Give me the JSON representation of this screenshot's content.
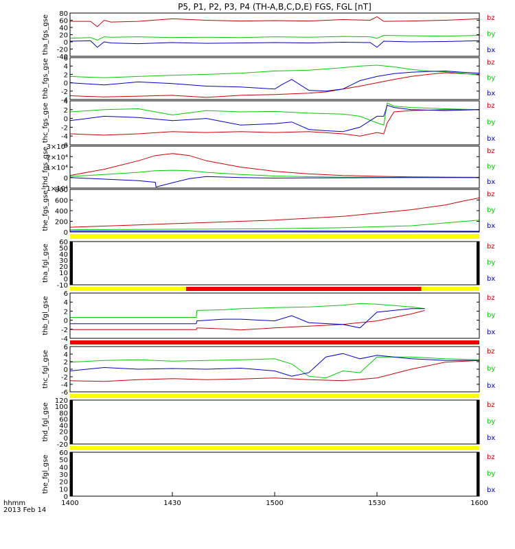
{
  "chart_data": {
    "type": "line",
    "title": "P5, P1, P2, P3, P4 (TH-A,B,C,D,E) FGS, FGL [nT]",
    "x_label_lines": [
      "hhmm",
      "2013 Feb 14"
    ],
    "x_ticks": [
      "1400",
      "1430",
      "1500",
      "1530",
      "1600"
    ],
    "x_range_minutes": [
      0,
      120
    ],
    "colors": {
      "bz": "#cc0000",
      "by": "#00cc00",
      "bx": "#0000cc",
      "flag_yellow": "#ffff00",
      "flag_red": "#ee0000"
    },
    "panels": [
      {
        "label": "tha_fgs_gse",
        "ylim": [
          -40,
          80
        ],
        "yticks": [
          "80",
          "60",
          "40",
          "20",
          "0",
          "-20",
          "-40"
        ],
        "legend": [
          "bz",
          "by",
          "bx"
        ],
        "series": [
          {
            "name": "bz",
            "x": [
              0,
              6,
              8,
              10,
              12,
              20,
              30,
              40,
              50,
              60,
              70,
              80,
              88,
              90,
              92,
              100,
              110,
              120
            ],
            "y": [
              57,
              57,
              42,
              60,
              55,
              57,
              64,
              60,
              58,
              59,
              58,
              62,
              60,
              70,
              57,
              58,
              60,
              64
            ]
          },
          {
            "name": "by",
            "x": [
              0,
              6,
              8,
              10,
              12,
              20,
              30,
              40,
              50,
              60,
              70,
              80,
              88,
              90,
              92,
              100,
              110,
              120
            ],
            "y": [
              10,
              12,
              5,
              14,
              13,
              14,
              12,
              13,
              12,
              14,
              13,
              15,
              14,
              10,
              18,
              17,
              16,
              18
            ]
          },
          {
            "name": "bx",
            "x": [
              0,
              6,
              8,
              10,
              12,
              20,
              30,
              40,
              50,
              60,
              70,
              80,
              88,
              90,
              92,
              100,
              110,
              120
            ],
            "y": [
              2,
              3,
              -15,
              0,
              -3,
              -5,
              -2,
              -4,
              -3,
              -2,
              -3,
              -1,
              -2,
              -15,
              2,
              0,
              1,
              3
            ]
          }
        ]
      },
      {
        "label": "thb_fgs_gse",
        "ylim": [
          -4,
          6
        ],
        "yticks": [
          "6",
          "4",
          "2",
          "0",
          "-2",
          "-4"
        ],
        "legend": [
          "bz",
          "by",
          "bx"
        ],
        "series": [
          {
            "name": "bz",
            "x": [
              0,
              10,
              20,
              30,
              40,
              50,
              60,
              70,
              75,
              80,
              85,
              90,
              95,
              100,
              105,
              110,
              115,
              120
            ],
            "y": [
              -3.1,
              -3.4,
              -3.2,
              -3.0,
              -3.5,
              -3.0,
              -2.8,
              -2.5,
              -2.2,
              -1.5,
              -0.8,
              0,
              0.8,
              1.5,
              2.0,
              2.4,
              2.2,
              2.0
            ]
          },
          {
            "name": "by",
            "x": [
              0,
              10,
              20,
              30,
              40,
              50,
              60,
              70,
              75,
              80,
              85,
              90,
              95,
              100,
              105,
              110,
              115,
              120
            ],
            "y": [
              1.5,
              1.2,
              1.5,
              1.8,
              2.0,
              2.3,
              2.8,
              3.0,
              3.3,
              3.6,
              4.0,
              4.2,
              3.8,
              3.2,
              2.8,
              2.6,
              2.3,
              1.8
            ]
          },
          {
            "name": "bx",
            "x": [
              0,
              10,
              20,
              30,
              40,
              50,
              60,
              62,
              65,
              70,
              75,
              80,
              85,
              90,
              95,
              100,
              105,
              110,
              115,
              120
            ],
            "y": [
              0.0,
              -0.5,
              0.2,
              -0.2,
              -0.8,
              -1.0,
              -1.5,
              -0.5,
              0.8,
              -1.8,
              -2.0,
              -1.5,
              0.5,
              1.5,
              2.2,
              2.5,
              2.7,
              2.8,
              2.5,
              2.3
            ]
          }
        ]
      },
      {
        "label": "thc_fgs_gse",
        "ylim": [
          -6,
          4
        ],
        "yticks": [
          "4",
          "2",
          "0",
          "-2",
          "-4",
          "-6"
        ],
        "legend": [
          "bz",
          "by",
          "bx"
        ],
        "series": [
          {
            "name": "bz",
            "x": [
              0,
              10,
              20,
              30,
              40,
              50,
              60,
              70,
              80,
              85,
              90,
              92,
              93,
              95,
              100,
              110,
              120
            ],
            "y": [
              -3.5,
              -3.8,
              -3.5,
              -3.0,
              -3.2,
              -3.0,
              -3.2,
              -3.0,
              -3.5,
              -4.0,
              -3.2,
              -3.5,
              -1.0,
              1.5,
              1.8,
              2.0,
              2.0
            ]
          },
          {
            "name": "by",
            "x": [
              0,
              10,
              20,
              30,
              40,
              50,
              60,
              70,
              80,
              85,
              90,
              92,
              93,
              95,
              100,
              110,
              120
            ],
            "y": [
              1.5,
              2.0,
              2.2,
              0.8,
              1.8,
              1.5,
              1.6,
              1.2,
              1.0,
              0.5,
              -1.0,
              -1.5,
              3.5,
              2.8,
              2.5,
              2.2,
              2.0
            ]
          },
          {
            "name": "bx",
            "x": [
              0,
              10,
              20,
              30,
              40,
              50,
              60,
              65,
              70,
              75,
              80,
              85,
              90,
              92,
              93,
              95,
              100,
              110,
              120
            ],
            "y": [
              -0.5,
              0.5,
              0.2,
              -0.5,
              0.0,
              -1.5,
              -1.2,
              -0.8,
              -2.5,
              -2.8,
              -3.0,
              -2.0,
              0.5,
              0.5,
              3.0,
              2.5,
              2.0,
              1.8,
              2.0
            ]
          }
        ]
      },
      {
        "label": "thd_fgs_gse",
        "ylim": [
          -10000,
          30000
        ],
        "yticks": [
          "3×10⁴",
          "2×10⁴",
          "1×10⁴",
          "0",
          "−1×10⁴"
        ],
        "legend": [
          "bz",
          "by",
          "bx"
        ],
        "series": [
          {
            "name": "bz",
            "x": [
              0,
              10,
              20,
              25,
              30,
              35,
              40,
              50,
              60,
              70,
              80,
              90,
              100,
              110,
              120
            ],
            "y": [
              2000,
              8000,
              16000,
              21000,
              23000,
              21000,
              16000,
              10000,
              6000,
              3500,
              2000,
              1200,
              700,
              400,
              200
            ]
          },
          {
            "name": "by",
            "x": [
              0,
              10,
              20,
              25,
              30,
              35,
              40,
              50,
              60,
              70,
              80,
              90,
              100,
              110,
              120
            ],
            "y": [
              1000,
              3000,
              5000,
              6500,
              7000,
              6500,
              5000,
              3000,
              1500,
              800,
              400,
              200,
              100,
              50,
              0
            ]
          },
          {
            "name": "bx",
            "x": [
              0,
              10,
              20,
              25,
              25.2,
              30,
              35,
              40,
              50,
              60,
              70,
              80,
              90,
              100,
              110,
              120
            ],
            "y": [
              0,
              -1500,
              -3000,
              -4500,
              -9000,
              -5000,
              -1000,
              1000,
              0,
              -500,
              -300,
              -200,
              -100,
              0,
              0,
              0
            ]
          }
        ]
      },
      {
        "label": "the_fgs_gse",
        "ylim": [
          -50,
          850
        ],
        "yticks": [
          "800",
          "600",
          "400",
          "200",
          "0"
        ],
        "legend": [
          "bz",
          "by",
          "bx"
        ],
        "series": [
          {
            "name": "bz",
            "x": [
              0,
              20,
              40,
              60,
              80,
              100,
              110,
              115,
              120
            ],
            "y": [
              50,
              100,
              150,
              200,
              280,
              420,
              520,
              600,
              670
            ]
          },
          {
            "name": "by",
            "x": [
              0,
              20,
              40,
              60,
              80,
              100,
              110,
              120
            ],
            "y": [
              0,
              5,
              10,
              20,
              40,
              80,
              140,
              200
            ]
          },
          {
            "name": "bx",
            "x": [
              0,
              60,
              100,
              120
            ],
            "y": [
              -30,
              -30,
              -32,
              -35
            ]
          }
        ]
      },
      {
        "label": "tha_fgl_gse",
        "ylim": [
          -15,
          65
        ],
        "yticks": [
          "60",
          "50",
          "40",
          "30",
          "20",
          "10",
          "0",
          "-10"
        ],
        "legend": [
          "bz",
          "by",
          "bx"
        ],
        "series": []
      },
      {
        "label": "thb_fgl_gse",
        "ylim": [
          -6,
          7
        ],
        "yticks": [
          "6",
          "4",
          "2",
          "0",
          "-2",
          "-4"
        ],
        "legend": [
          "bz",
          "by",
          "bx"
        ],
        "series": [
          {
            "name": "bz",
            "x": [
              0,
              37,
              37.2,
              45,
              50,
              60,
              70,
              80,
              90,
              100,
              104
            ],
            "y": [
              -3.5,
              -3.5,
              -3.0,
              -3.3,
              -3.6,
              -3.0,
              -2.5,
              -2.0,
              -1.0,
              1.0,
              2.0
            ]
          },
          {
            "name": "by",
            "x": [
              0,
              37,
              37.2,
              45,
              50,
              60,
              70,
              80,
              85,
              90,
              100,
              104
            ],
            "y": [
              0,
              0,
              2.0,
              2.2,
              2.5,
              2.8,
              3.0,
              3.5,
              4.0,
              3.8,
              3.0,
              2.5
            ]
          },
          {
            "name": "bx",
            "x": [
              0,
              37,
              37.2,
              45,
              50,
              60,
              65,
              70,
              80,
              85,
              90,
              100,
              104
            ],
            "y": [
              -1.8,
              -1.8,
              -1.0,
              -0.5,
              -0.5,
              -1.0,
              0.5,
              -1.5,
              -2.0,
              -3.0,
              1.5,
              2.5,
              2.5
            ]
          }
        ]
      },
      {
        "label": "thc_fgl_gse",
        "ylim": [
          -7,
          6
        ],
        "yticks": [
          "6",
          "4",
          "2",
          "0",
          "-2",
          "-4",
          "-6"
        ],
        "legend": [
          "bz",
          "by",
          "bx"
        ],
        "series": [
          {
            "name": "bz",
            "x": [
              0,
              10,
              20,
              30,
              40,
              50,
              60,
              70,
              80,
              90,
              100,
              110,
              120
            ],
            "y": [
              -3.8,
              -4.0,
              -3.5,
              -3.2,
              -3.5,
              -3.3,
              -3.0,
              -3.5,
              -3.8,
              -3.0,
              -0.5,
              1.5,
              2.0
            ]
          },
          {
            "name": "by",
            "x": [
              0,
              10,
              20,
              30,
              40,
              50,
              60,
              65,
              70,
              75,
              80,
              85,
              90,
              100,
              110,
              120
            ],
            "y": [
              1.5,
              2.0,
              2.2,
              1.8,
              2.0,
              2.2,
              2.5,
              1.0,
              -2.5,
              -3.0,
              -1.0,
              -1.5,
              3.0,
              3.0,
              2.5,
              2.2
            ]
          },
          {
            "name": "bx",
            "x": [
              0,
              10,
              20,
              30,
              40,
              50,
              60,
              65,
              70,
              75,
              80,
              85,
              90,
              100,
              110,
              120
            ],
            "y": [
              -1.0,
              0.0,
              -0.5,
              -0.3,
              -0.5,
              -0.2,
              -1.0,
              -2.5,
              -1.5,
              3.0,
              4.0,
              2.5,
              3.5,
              2.5,
              2.0,
              2.0
            ]
          }
        ]
      },
      {
        "label": "thd_fgl_gse",
        "ylim": [
          -25,
          125
        ],
        "yticks": [
          "120",
          "100",
          "80",
          "60",
          "40",
          "20",
          "0",
          "-20"
        ],
        "legend": [
          "bz",
          "by",
          "bx"
        ],
        "series": []
      },
      {
        "label": "the_fgl_gse",
        "ylim": [
          -5,
          65
        ],
        "yticks": [
          "60",
          "50",
          "40",
          "30",
          "20",
          "10",
          "0"
        ],
        "legend": [
          "bz",
          "by",
          "bx"
        ],
        "series": []
      }
    ],
    "flag_bars": [
      {
        "segments": [
          {
            "from": 0,
            "to": 120,
            "color": "flag_yellow"
          }
        ]
      },
      {
        "segments": [
          {
            "from": 0,
            "to": 34,
            "color": "flag_yellow"
          },
          {
            "from": 34,
            "to": 103,
            "color": "flag_red"
          },
          {
            "from": 103,
            "to": 120,
            "color": "flag_yellow"
          }
        ]
      },
      {
        "segments": [
          {
            "from": 0,
            "to": 120,
            "color": "flag_red"
          }
        ]
      },
      {
        "segments": [
          {
            "from": 0,
            "to": 120,
            "color": "flag_yellow"
          }
        ]
      },
      {
        "segments": [
          {
            "from": 0,
            "to": 120,
            "color": "flag_yellow"
          }
        ]
      }
    ]
  }
}
